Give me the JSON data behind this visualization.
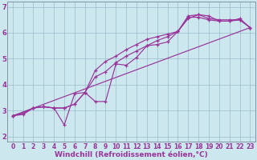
{
  "xlabel": "Windchill (Refroidissement éolien,°C)",
  "bg_color": "#cce8ee",
  "plot_bg_color": "#cce8ee",
  "line_color": "#993399",
  "grid_color": "#99bbcc",
  "spine_color": "#778899",
  "xlim": [
    -0.5,
    23.5
  ],
  "ylim": [
    1.8,
    7.2
  ],
  "yticks": [
    2,
    3,
    4,
    5,
    6,
    7
  ],
  "xticks": [
    0,
    1,
    2,
    3,
    4,
    5,
    6,
    7,
    8,
    9,
    10,
    11,
    12,
    13,
    14,
    15,
    16,
    17,
    18,
    19,
    20,
    21,
    22,
    23
  ],
  "lines": [
    [
      0,
      2.8,
      1,
      2.85,
      2,
      3.1,
      3,
      3.15,
      4,
      3.1,
      5,
      2.45,
      6,
      3.65,
      7,
      3.7,
      8,
      3.35,
      9,
      3.35,
      10,
      4.8,
      11,
      4.75,
      12,
      5.05,
      13,
      5.5,
      14,
      5.55,
      15,
      5.65,
      16,
      6.05,
      17,
      6.55,
      18,
      6.7,
      19,
      6.65,
      20,
      6.45,
      21,
      6.45,
      22,
      6.5,
      23,
      6.2
    ],
    [
      0,
      2.8,
      1,
      2.9,
      2,
      3.1,
      3,
      3.15,
      4,
      3.1,
      5,
      3.1,
      6,
      3.25,
      7,
      3.7,
      8,
      4.55,
      9,
      4.9,
      10,
      5.1,
      11,
      5.35,
      12,
      5.55,
      13,
      5.75,
      14,
      5.85,
      15,
      5.95,
      16,
      6.05,
      17,
      6.6,
      18,
      6.6,
      19,
      6.5,
      20,
      6.45,
      21,
      6.45,
      22,
      6.55,
      23,
      6.2
    ],
    [
      0,
      2.8,
      1,
      2.9,
      2,
      3.1,
      3,
      3.15,
      4,
      3.1,
      5,
      3.1,
      6,
      3.25,
      7,
      3.7,
      8,
      4.3,
      9,
      4.5,
      10,
      4.85,
      11,
      5.1,
      12,
      5.3,
      13,
      5.5,
      14,
      5.7,
      15,
      5.85,
      16,
      6.05,
      17,
      6.65,
      18,
      6.7,
      19,
      6.55,
      20,
      6.5,
      21,
      6.5,
      22,
      6.5,
      23,
      6.2
    ],
    [
      0,
      2.8,
      23,
      6.2
    ]
  ],
  "marker": "+",
  "markersize": 3.5,
  "linewidth": 0.85,
  "xlabel_fontsize": 6.5,
  "xlabel_color": "#993399",
  "tick_fontsize": 5.5,
  "tick_color": "#993399"
}
